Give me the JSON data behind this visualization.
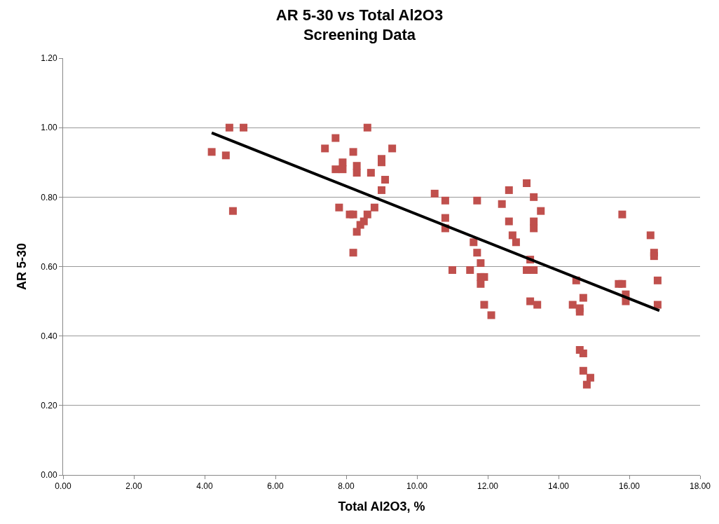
{
  "chart_data": {
    "type": "scatter",
    "title": "AR 5-30 vs Total Al2O3\nScreening Data",
    "xlabel": "Total Al2O3, %",
    "ylabel": "AR 5-30",
    "xlim": [
      0,
      18
    ],
    "xticks": [
      {
        "value": 0,
        "label": "0.00"
      },
      {
        "value": 2,
        "label": "2.00"
      },
      {
        "value": 4,
        "label": "4.00"
      },
      {
        "value": 6,
        "label": "6.00"
      },
      {
        "value": 8,
        "label": "8.00"
      },
      {
        "value": 10,
        "label": "10.00"
      },
      {
        "value": 12,
        "label": "12.00"
      },
      {
        "value": 14,
        "label": "14.00"
      },
      {
        "value": 16,
        "label": "16.00"
      },
      {
        "value": 18,
        "label": "18.00"
      }
    ],
    "ylim": [
      0,
      1.2
    ],
    "yticks": [
      {
        "value": 0,
        "label": "0.00"
      },
      {
        "value": 0.2,
        "label": "0.20"
      },
      {
        "value": 0.4,
        "label": "0.40"
      },
      {
        "value": 0.6,
        "label": "0.60"
      },
      {
        "value": 0.8,
        "label": "0.80"
      },
      {
        "value": 1.0,
        "label": "1.00"
      },
      {
        "value": 1.2,
        "label": "1.20"
      }
    ],
    "grid": "y",
    "series": [
      {
        "marker": "square",
        "color": "#c0504d",
        "x": [
          4.2,
          4.6,
          4.7,
          4.8,
          5.1,
          7.4,
          7.7,
          7.7,
          7.9,
          7.9,
          7.8,
          8.1,
          8.2,
          8.2,
          8.2,
          8.3,
          8.3,
          8.3,
          8.4,
          8.5,
          8.6,
          8.6,
          8.7,
          8.8,
          9.0,
          9.0,
          9.0,
          9.1,
          9.3,
          10.5,
          10.8,
          10.8,
          10.8,
          11.0,
          11.5,
          11.6,
          11.7,
          11.7,
          11.8,
          11.8,
          11.8,
          11.9,
          11.9,
          12.1,
          12.4,
          12.6,
          12.6,
          12.7,
          12.8,
          13.1,
          13.1,
          13.2,
          13.2,
          13.3,
          13.3,
          13.3,
          13.3,
          13.4,
          13.5,
          14.4,
          14.5,
          14.6,
          14.6,
          14.6,
          14.7,
          14.7,
          14.7,
          14.8,
          14.9,
          15.7,
          15.8,
          15.8,
          15.9,
          15.9,
          16.6,
          16.7,
          16.7,
          16.8,
          16.8
        ],
        "values": [
          0.93,
          0.92,
          1.0,
          0.76,
          1.0,
          0.94,
          0.97,
          0.88,
          0.9,
          0.88,
          0.77,
          0.75,
          0.93,
          0.75,
          0.64,
          0.87,
          0.89,
          0.7,
          0.72,
          0.73,
          0.75,
          1.0,
          0.87,
          0.77,
          0.91,
          0.9,
          0.82,
          0.85,
          0.94,
          0.81,
          0.79,
          0.71,
          0.74,
          0.59,
          0.59,
          0.67,
          0.64,
          0.79,
          0.57,
          0.55,
          0.61,
          0.57,
          0.49,
          0.46,
          0.78,
          0.73,
          0.82,
          0.69,
          0.67,
          0.84,
          0.59,
          0.5,
          0.62,
          0.59,
          0.73,
          0.8,
          0.71,
          0.49,
          0.76,
          0.49,
          0.56,
          0.47,
          0.36,
          0.48,
          0.3,
          0.35,
          0.51,
          0.26,
          0.28,
          0.55,
          0.55,
          0.75,
          0.52,
          0.5,
          0.69,
          0.64,
          0.63,
          0.56,
          0.49
        ]
      },
      {
        "type": "line",
        "color": "#000000",
        "marker": "none",
        "line_style": "solid",
        "x": [
          4.2,
          16.85
        ],
        "values": [
          0.985,
          0.473
        ]
      }
    ]
  }
}
